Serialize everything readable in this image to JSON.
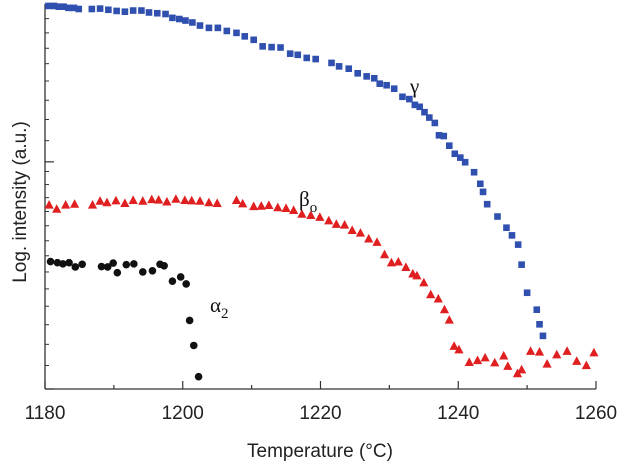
{
  "chart_data": {
    "type": "scatter",
    "xlabel": "Temperature (°C)",
    "ylabel": "Log. intensity (a.u.)",
    "xlim": [
      1180,
      1260
    ],
    "ylim": [
      0,
      1
    ],
    "x_ticks": [
      "1180",
      "1200",
      "1220",
      "1240",
      "1260"
    ],
    "colors": {
      "gamma": "#3050b0",
      "beta": "#e02020",
      "alpha": "#111111"
    },
    "series": [
      {
        "name": "γ",
        "marker": "square",
        "color": "#3050b0",
        "x": [
          1180.5,
          1181.3,
          1182.0,
          1182.7,
          1183.4,
          1184.2,
          1184.9,
          1186.8,
          1188.0,
          1189.2,
          1190.4,
          1191.6,
          1192.8,
          1194.0,
          1195.1,
          1196.3,
          1197.5,
          1198.5,
          1199.5,
          1200.4,
          1201.4,
          1202.5,
          1203.8,
          1205.1,
          1206.4,
          1207.8,
          1209.0,
          1210.3,
          1211.6,
          1212.9,
          1214.2,
          1215.6,
          1216.7,
          1218.0,
          1219.3,
          1221.6,
          1222.7,
          1224.1,
          1225.4,
          1226.7,
          1227.8,
          1228.6,
          1229.6,
          1230.7,
          1231.9,
          1232.9,
          1233.7,
          1234.4,
          1235.1,
          1235.8,
          1236.6,
          1237.2,
          1237.9,
          1238.7,
          1239.5,
          1240.3,
          1241.0,
          1242.3,
          1243.2,
          1243.6,
          1244.2,
          1245.7,
          1247.0,
          1247.8,
          1248.7,
          1249.2,
          1250.0,
          1251.4,
          1251.8,
          1252.3
        ],
        "y": [
          0.995,
          0.995,
          0.993,
          0.993,
          0.99,
          0.99,
          0.987,
          0.987,
          0.988,
          0.985,
          0.982,
          0.98,
          0.983,
          0.983,
          0.978,
          0.976,
          0.974,
          0.964,
          0.961,
          0.957,
          0.952,
          0.944,
          0.938,
          0.938,
          0.93,
          0.925,
          0.916,
          0.907,
          0.89,
          0.888,
          0.887,
          0.871,
          0.868,
          0.86,
          0.857,
          0.847,
          0.838,
          0.832,
          0.82,
          0.812,
          0.807,
          0.793,
          0.789,
          0.78,
          0.759,
          0.753,
          0.738,
          0.733,
          0.719,
          0.705,
          0.691,
          0.659,
          0.657,
          0.632,
          0.611,
          0.601,
          0.589,
          0.563,
          0.533,
          0.512,
          0.48,
          0.448,
          0.419,
          0.399,
          0.375,
          0.323,
          0.25,
          0.206,
          0.168,
          0.138
        ]
      },
      {
        "name": "β",
        "name_sub": "o",
        "marker": "triangle",
        "color": "#e02020",
        "x": [
          1180.6,
          1181.7,
          1183.0,
          1184.3,
          1186.9,
          1188.0,
          1189.0,
          1190.3,
          1191.6,
          1192.8,
          1194.2,
          1195.5,
          1196.5,
          1197.7,
          1199.0,
          1200.3,
          1201.3,
          1202.5,
          1203.8,
          1205.0,
          1207.8,
          1208.7,
          1210.3,
          1211.4,
          1212.5,
          1213.8,
          1215.0,
          1216.1,
          1217.3,
          1218.6,
          1219.9,
          1221.2,
          1222.3,
          1223.5,
          1224.6,
          1225.8,
          1227.0,
          1228.2,
          1229.3,
          1230.3,
          1231.3,
          1232.4,
          1233.4,
          1234.0,
          1235.0,
          1236.0,
          1237.1,
          1238.0,
          1238.7,
          1239.4,
          1240.1,
          1241.6,
          1242.8,
          1243.9,
          1245.3,
          1246.6,
          1247.2,
          1248.6,
          1249.2,
          1250.5,
          1251.8,
          1252.9,
          1254.3,
          1255.8,
          1257.2,
          1258.6,
          1259.7
        ],
        "y": [
          0.478,
          0.467,
          0.478,
          0.48,
          0.478,
          0.488,
          0.484,
          0.489,
          0.482,
          0.49,
          0.488,
          0.492,
          0.491,
          0.486,
          0.493,
          0.49,
          0.489,
          0.488,
          0.484,
          0.482,
          0.49,
          0.481,
          0.474,
          0.475,
          0.477,
          0.471,
          0.469,
          0.464,
          0.454,
          0.451,
          0.446,
          0.437,
          0.428,
          0.426,
          0.412,
          0.405,
          0.39,
          0.381,
          0.349,
          0.328,
          0.33,
          0.316,
          0.299,
          0.294,
          0.276,
          0.245,
          0.234,
          0.206,
          0.179,
          0.111,
          0.102,
          0.069,
          0.074,
          0.081,
          0.068,
          0.086,
          0.059,
          0.04,
          0.05,
          0.098,
          0.096,
          0.065,
          0.089,
          0.098,
          0.072,
          0.061,
          0.094
        ]
      },
      {
        "name": "α",
        "name_sub": "2",
        "marker": "circle",
        "color": "#111111",
        "x": [
          1180.8,
          1181.8,
          1182.6,
          1183.5,
          1184.4,
          1185.4,
          1188.2,
          1189.1,
          1189.9,
          1190.5,
          1191.8,
          1192.9,
          1194.2,
          1195.6,
          1196.7,
          1197.3,
          1198.5,
          1199.7,
          1200.5,
          1201.0,
          1201.6,
          1202.3
        ],
        "y": [
          0.331,
          0.328,
          0.325,
          0.328,
          0.317,
          0.324,
          0.318,
          0.317,
          0.327,
          0.302,
          0.323,
          0.325,
          0.304,
          0.307,
          0.324,
          0.32,
          0.28,
          0.291,
          0.273,
          0.178,
          0.113,
          0.032
        ]
      }
    ]
  }
}
